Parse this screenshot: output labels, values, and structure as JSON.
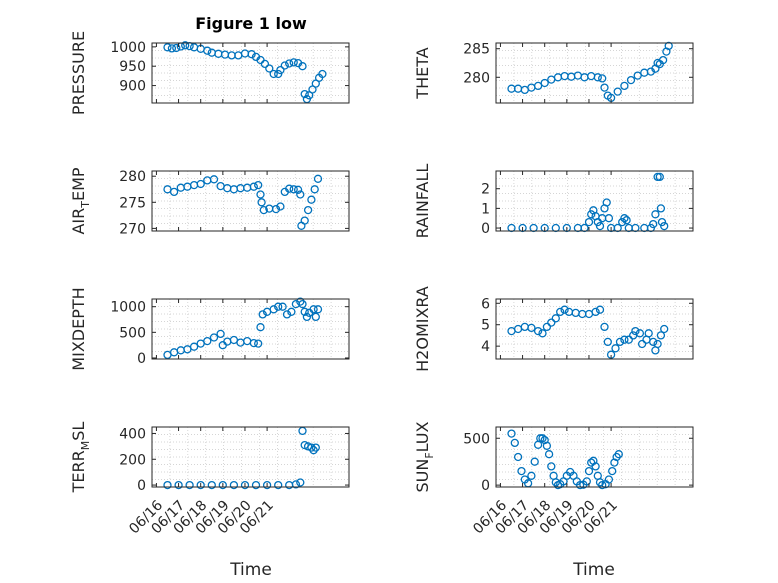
{
  "figure_title": "Figure 1 low",
  "chart_data": [
    {
      "type": "scatter",
      "ylabel": {
        "main": "PRESSURE",
        "sub": ""
      },
      "ylim": [
        855,
        1010
      ],
      "yticks": [
        900,
        950,
        1000
      ],
      "ytick_labels": [
        "900",
        "950",
        "1000"
      ],
      "points": [
        [
          0,
          999
        ],
        [
          0.2,
          996
        ],
        [
          0.4,
          997
        ],
        [
          0.6,
          1001
        ],
        [
          0.8,
          1004
        ],
        [
          1.0,
          1002
        ],
        [
          1.2,
          999
        ],
        [
          1.5,
          995
        ],
        [
          1.8,
          990
        ],
        [
          2.0,
          985
        ],
        [
          2.3,
          982
        ],
        [
          2.6,
          980
        ],
        [
          2.9,
          978
        ],
        [
          3.2,
          978
        ],
        [
          3.5,
          983
        ],
        [
          3.8,
          981
        ],
        [
          4.0,
          974
        ],
        [
          4.2,
          966
        ],
        [
          4.4,
          956
        ],
        [
          4.6,
          944
        ],
        [
          4.8,
          930
        ],
        [
          5.0,
          930
        ],
        [
          5.1,
          940
        ],
        [
          5.3,
          952
        ],
        [
          5.5,
          957
        ],
        [
          5.7,
          960
        ],
        [
          5.9,
          958
        ],
        [
          6.1,
          950
        ],
        [
          6.2,
          878
        ],
        [
          6.3,
          865
        ],
        [
          6.4,
          875
        ],
        [
          6.55,
          890
        ],
        [
          6.7,
          905
        ],
        [
          6.85,
          920
        ],
        [
          7.0,
          930
        ]
      ]
    },
    {
      "type": "scatter",
      "ylabel": {
        "main": "THETA",
        "sub": ""
      },
      "ylim": [
        275.5,
        286
      ],
      "yticks": [
        280,
        285
      ],
      "ytick_labels": [
        "280",
        "285"
      ],
      "points": [
        [
          0,
          278
        ],
        [
          0.3,
          278
        ],
        [
          0.6,
          277.8
        ],
        [
          0.9,
          278.2
        ],
        [
          1.2,
          278.5
        ],
        [
          1.5,
          279
        ],
        [
          1.8,
          279.6
        ],
        [
          2.1,
          280
        ],
        [
          2.4,
          280.2
        ],
        [
          2.7,
          280.1
        ],
        [
          3.0,
          280.3
        ],
        [
          3.3,
          280
        ],
        [
          3.6,
          280.2
        ],
        [
          3.9,
          280
        ],
        [
          4.1,
          279.8
        ],
        [
          4.2,
          278.2
        ],
        [
          4.35,
          276.8
        ],
        [
          4.5,
          276.4
        ],
        [
          4.8,
          277.5
        ],
        [
          5.1,
          278.5
        ],
        [
          5.4,
          279.5
        ],
        [
          5.7,
          280.3
        ],
        [
          6.0,
          280.8
        ],
        [
          6.3,
          281
        ],
        [
          6.5,
          281.5
        ],
        [
          6.6,
          282.5
        ],
        [
          6.7,
          282.3
        ],
        [
          6.85,
          283
        ],
        [
          7.0,
          284.5
        ],
        [
          7.1,
          285.5
        ]
      ]
    },
    {
      "type": "scatter",
      "ylabel": {
        "main": "AIR",
        "sub": "T",
        "rest": "EMP"
      },
      "ylim": [
        269.5,
        281
      ],
      "yticks": [
        270,
        275,
        280
      ],
      "ytick_labels": [
        "270",
        "275",
        "280"
      ],
      "points": [
        [
          0,
          277.5
        ],
        [
          0.3,
          277
        ],
        [
          0.6,
          277.8
        ],
        [
          0.9,
          278
        ],
        [
          1.2,
          278.3
        ],
        [
          1.5,
          278.5
        ],
        [
          1.8,
          279.2
        ],
        [
          2.1,
          279.4
        ],
        [
          2.4,
          278.1
        ],
        [
          2.7,
          277.7
        ],
        [
          3.0,
          277.5
        ],
        [
          3.3,
          277.7
        ],
        [
          3.6,
          277.8
        ],
        [
          3.9,
          278
        ],
        [
          4.1,
          278.3
        ],
        [
          4.2,
          276.5
        ],
        [
          4.25,
          275
        ],
        [
          4.35,
          273.5
        ],
        [
          4.6,
          273.8
        ],
        [
          4.9,
          273.7
        ],
        [
          5.1,
          274.2
        ],
        [
          5.3,
          277
        ],
        [
          5.5,
          277.6
        ],
        [
          5.7,
          277.5
        ],
        [
          5.9,
          277.4
        ],
        [
          6.0,
          276.5
        ],
        [
          6.05,
          270.5
        ],
        [
          6.2,
          271.5
        ],
        [
          6.35,
          273.5
        ],
        [
          6.5,
          275.5
        ],
        [
          6.65,
          277.5
        ],
        [
          6.8,
          279.5
        ]
      ]
    },
    {
      "type": "scatter",
      "ylabel": {
        "main": "RAINFALL",
        "sub": ""
      },
      "ylim": [
        -0.15,
        2.9
      ],
      "yticks": [
        0,
        1,
        2
      ],
      "ytick_labels": [
        "0",
        "1",
        "2"
      ],
      "points": [
        [
          0,
          0
        ],
        [
          0.5,
          0
        ],
        [
          1,
          0
        ],
        [
          1.5,
          0
        ],
        [
          2,
          0
        ],
        [
          2.5,
          0
        ],
        [
          3,
          0
        ],
        [
          3.3,
          0
        ],
        [
          3.5,
          0.3
        ],
        [
          3.6,
          0.7
        ],
        [
          3.7,
          0.9
        ],
        [
          3.8,
          0.6
        ],
        [
          3.9,
          0.3
        ],
        [
          4.0,
          0.1
        ],
        [
          4.1,
          0.5
        ],
        [
          4.2,
          1.0
        ],
        [
          4.3,
          1.3
        ],
        [
          4.4,
          0.5
        ],
        [
          4.5,
          0
        ],
        [
          4.8,
          0
        ],
        [
          5.0,
          0.3
        ],
        [
          5.1,
          0.5
        ],
        [
          5.2,
          0.4
        ],
        [
          5.3,
          0
        ],
        [
          5.6,
          0
        ],
        [
          6.0,
          0
        ],
        [
          6.3,
          0
        ],
        [
          6.4,
          0.2
        ],
        [
          6.5,
          0.7
        ],
        [
          6.6,
          2.6
        ],
        [
          6.7,
          2.6
        ],
        [
          6.75,
          1.0
        ],
        [
          6.8,
          0.3
        ],
        [
          6.9,
          0.1
        ]
      ]
    },
    {
      "type": "scatter",
      "ylabel": {
        "main": "MIXDEPTH",
        "sub": ""
      },
      "ylim": [
        -20,
        1150
      ],
      "yticks": [
        0,
        500,
        1000
      ],
      "ytick_labels": [
        "0",
        "500",
        "1000"
      ],
      "points": [
        [
          0,
          60
        ],
        [
          0.3,
          110
        ],
        [
          0.6,
          150
        ],
        [
          0.9,
          170
        ],
        [
          1.2,
          220
        ],
        [
          1.5,
          280
        ],
        [
          1.8,
          330
        ],
        [
          2.1,
          400
        ],
        [
          2.4,
          470
        ],
        [
          2.5,
          250
        ],
        [
          2.7,
          320
        ],
        [
          3.0,
          350
        ],
        [
          3.3,
          300
        ],
        [
          3.6,
          330
        ],
        [
          3.9,
          290
        ],
        [
          4.1,
          280
        ],
        [
          4.2,
          600
        ],
        [
          4.3,
          850
        ],
        [
          4.5,
          900
        ],
        [
          4.8,
          950
        ],
        [
          5.0,
          1000
        ],
        [
          5.2,
          1000
        ],
        [
          5.4,
          850
        ],
        [
          5.6,
          900
        ],
        [
          5.8,
          1050
        ],
        [
          6.0,
          1100
        ],
        [
          6.1,
          1050
        ],
        [
          6.2,
          900
        ],
        [
          6.3,
          800
        ],
        [
          6.4,
          880
        ],
        [
          6.6,
          950
        ],
        [
          6.7,
          800
        ],
        [
          6.8,
          950
        ]
      ]
    },
    {
      "type": "scatter",
      "ylabel": {
        "main": "H2OMIXRA",
        "sub": ""
      },
      "ylim": [
        3.4,
        6.2
      ],
      "yticks": [
        4,
        5,
        6
      ],
      "ytick_labels": [
        "4",
        "5",
        "6"
      ],
      "points": [
        [
          0,
          4.7
        ],
        [
          0.3,
          4.8
        ],
        [
          0.6,
          4.9
        ],
        [
          0.9,
          4.85
        ],
        [
          1.2,
          4.7
        ],
        [
          1.4,
          4.6
        ],
        [
          1.6,
          4.9
        ],
        [
          1.8,
          5.1
        ],
        [
          2.0,
          5.3
        ],
        [
          2.2,
          5.6
        ],
        [
          2.4,
          5.7
        ],
        [
          2.6,
          5.6
        ],
        [
          2.9,
          5.55
        ],
        [
          3.2,
          5.5
        ],
        [
          3.5,
          5.5
        ],
        [
          3.8,
          5.6
        ],
        [
          4.0,
          5.7
        ],
        [
          4.2,
          4.9
        ],
        [
          4.35,
          4.2
        ],
        [
          4.5,
          3.6
        ],
        [
          4.7,
          3.9
        ],
        [
          4.9,
          4.2
        ],
        [
          5.1,
          4.3
        ],
        [
          5.3,
          4.3
        ],
        [
          5.5,
          4.5
        ],
        [
          5.6,
          4.7
        ],
        [
          5.8,
          4.6
        ],
        [
          5.9,
          4.1
        ],
        [
          6.1,
          4.3
        ],
        [
          6.2,
          4.6
        ],
        [
          6.4,
          4.2
        ],
        [
          6.5,
          3.8
        ],
        [
          6.6,
          4.1
        ],
        [
          6.75,
          4.5
        ],
        [
          6.9,
          4.8
        ]
      ]
    },
    {
      "type": "scatter",
      "ylabel": {
        "main": "TERR",
        "sub": "M",
        "rest": "SL"
      },
      "ylim": [
        -15,
        450
      ],
      "yticks": [
        0,
        200,
        400
      ],
      "ytick_labels": [
        "0",
        "200",
        "400"
      ],
      "points": [
        [
          0,
          0
        ],
        [
          0.5,
          0
        ],
        [
          1,
          0
        ],
        [
          1.5,
          0
        ],
        [
          2,
          0
        ],
        [
          2.5,
          0
        ],
        [
          3,
          0
        ],
        [
          3.5,
          0
        ],
        [
          4,
          0
        ],
        [
          4.5,
          0
        ],
        [
          5,
          0
        ],
        [
          5.5,
          0
        ],
        [
          5.8,
          5
        ],
        [
          6.0,
          20
        ],
        [
          6.1,
          420
        ],
        [
          6.2,
          310
        ],
        [
          6.35,
          300
        ],
        [
          6.5,
          290
        ],
        [
          6.6,
          270
        ],
        [
          6.7,
          290
        ]
      ]
    },
    {
      "type": "scatter",
      "ylabel": {
        "main": "SUN",
        "sub": "F",
        "rest": "LUX"
      },
      "ylim": [
        -20,
        620
      ],
      "yticks": [
        0,
        500
      ],
      "ytick_labels": [
        "0",
        "500"
      ],
      "points": [
        [
          0,
          550
        ],
        [
          0.15,
          450
        ],
        [
          0.3,
          300
        ],
        [
          0.45,
          150
        ],
        [
          0.6,
          60
        ],
        [
          0.75,
          20
        ],
        [
          0.9,
          100
        ],
        [
          1.05,
          250
        ],
        [
          1.2,
          430
        ],
        [
          1.3,
          500
        ],
        [
          1.4,
          500
        ],
        [
          1.5,
          480
        ],
        [
          1.6,
          420
        ],
        [
          1.7,
          330
        ],
        [
          1.8,
          200
        ],
        [
          1.9,
          100
        ],
        [
          2.0,
          30
        ],
        [
          2.1,
          0
        ],
        [
          2.2,
          10
        ],
        [
          2.35,
          40
        ],
        [
          2.5,
          100
        ],
        [
          2.65,
          140
        ],
        [
          2.8,
          100
        ],
        [
          2.95,
          40
        ],
        [
          3.1,
          0
        ],
        [
          3.25,
          5
        ],
        [
          3.4,
          40
        ],
        [
          3.5,
          150
        ],
        [
          3.6,
          240
        ],
        [
          3.7,
          260
        ],
        [
          3.8,
          200
        ],
        [
          3.9,
          100
        ],
        [
          4.0,
          30
        ],
        [
          4.1,
          0
        ],
        [
          4.25,
          10
        ],
        [
          4.4,
          60
        ],
        [
          4.55,
          150
        ],
        [
          4.65,
          240
        ],
        [
          4.75,
          300
        ],
        [
          4.85,
          330
        ]
      ]
    }
  ],
  "x_axis": {
    "ticks": [
      "06/16",
      "06/17",
      "06/18",
      "06/19",
      "06/20",
      "06/21"
    ],
    "label": "Time"
  }
}
